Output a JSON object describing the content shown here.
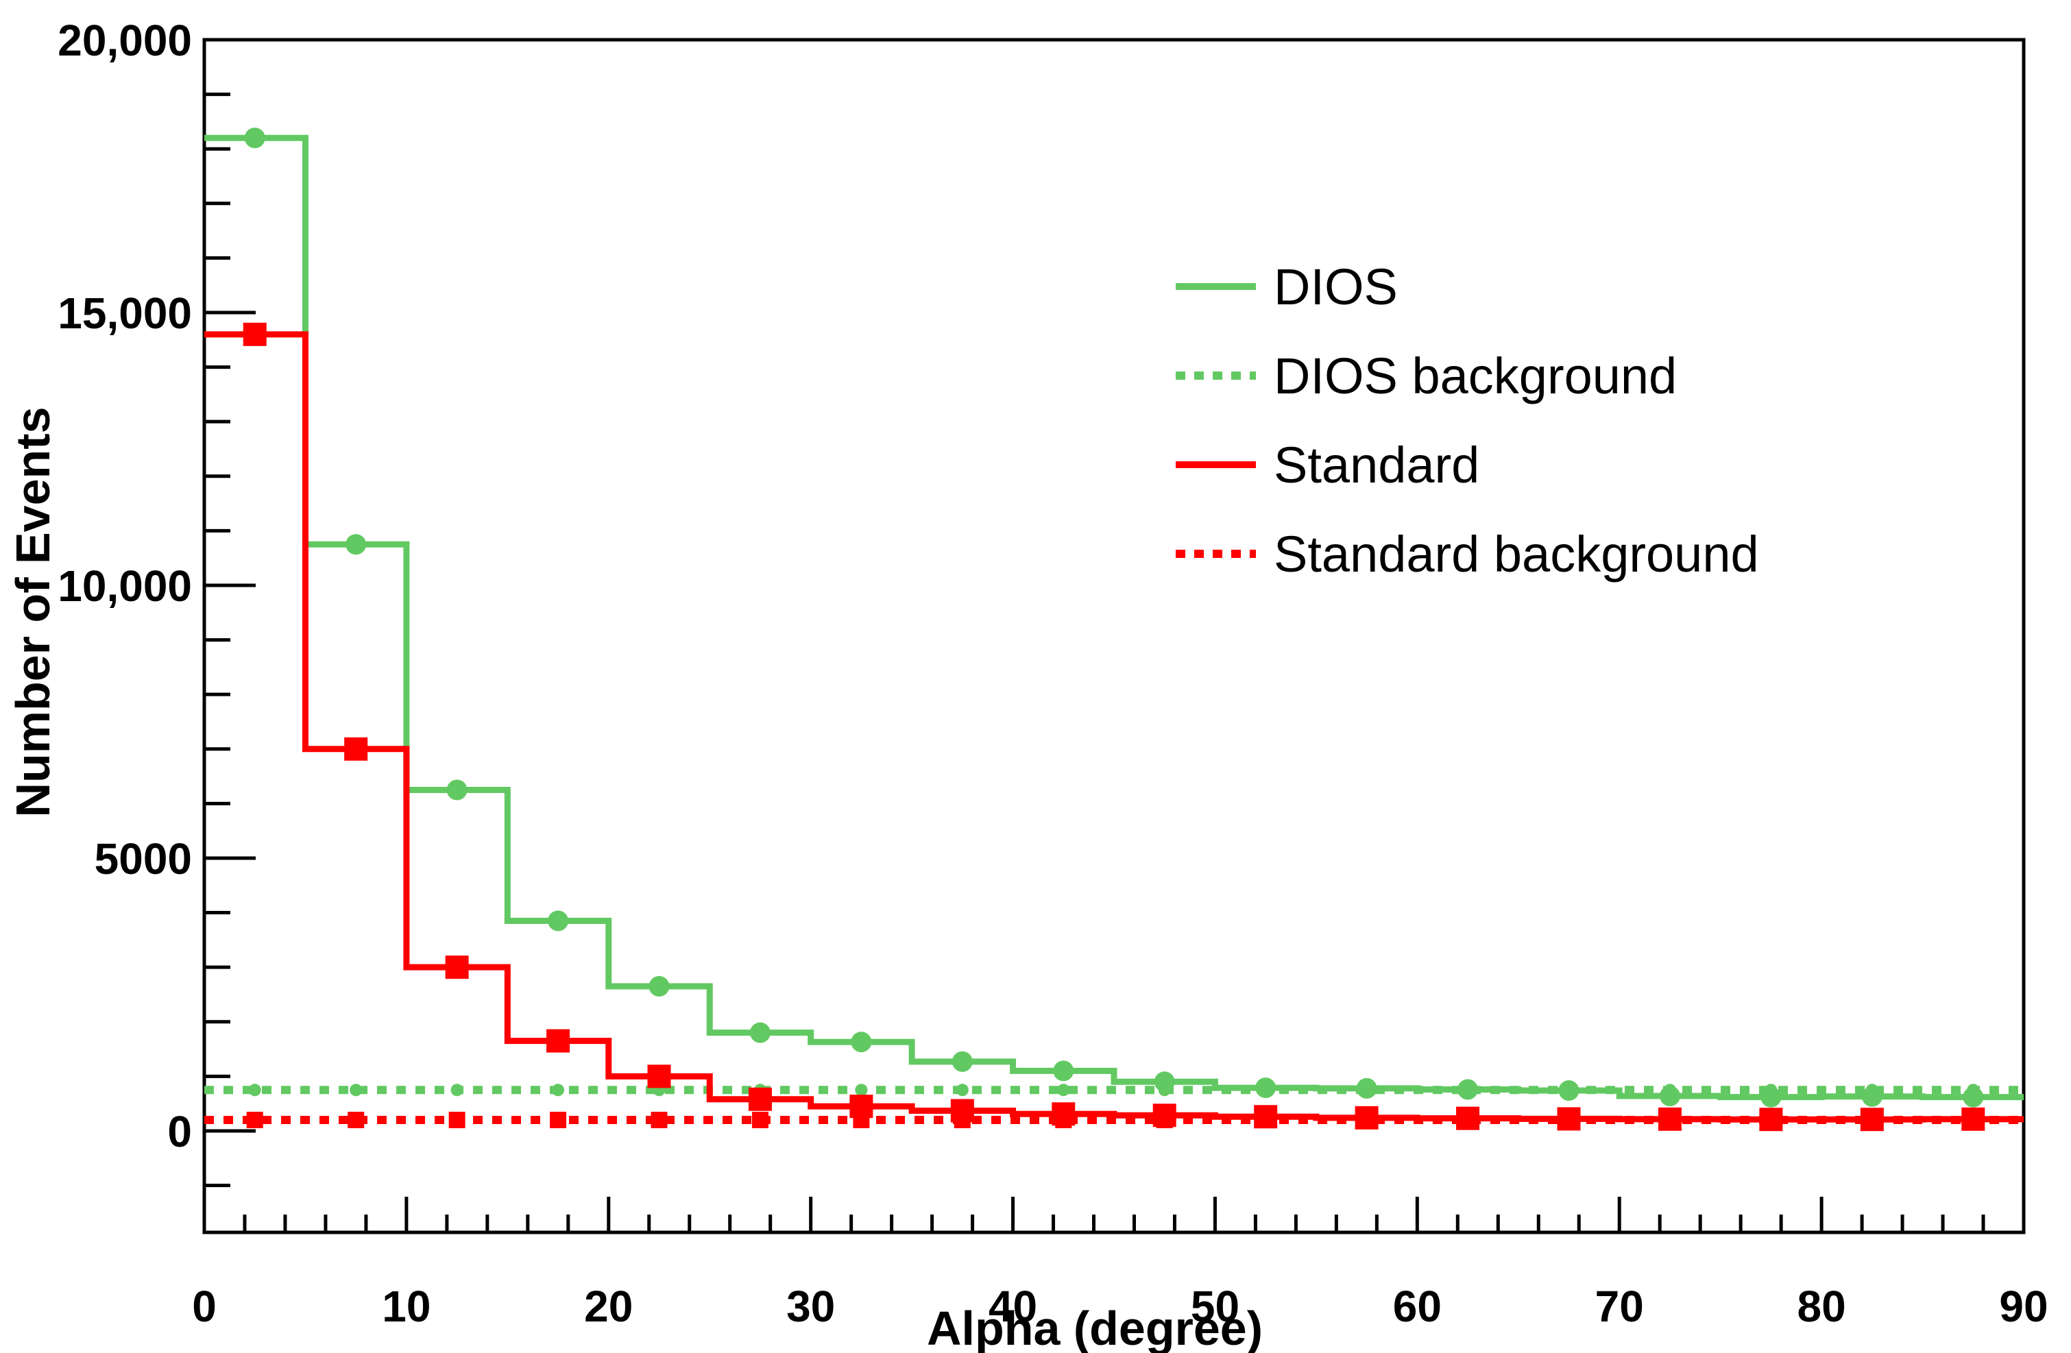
{
  "page": {
    "background_color": "#ffffff"
  },
  "chart_data": {
    "type": "step-histogram",
    "title": "",
    "xlabel": "Alpha (degree)",
    "ylabel": "Number of Events",
    "xlim": [
      0,
      90
    ],
    "ylim": [
      -1860,
      20000
    ],
    "grid": "off",
    "legend_position": "upper-right-inside",
    "legend_border": "none",
    "x_axis": {
      "tick_values": [
        0,
        10,
        20,
        30,
        40,
        50,
        60,
        70,
        80,
        90
      ],
      "tick_labels": [
        "0",
        "10",
        "20",
        "30",
        "40",
        "50",
        "60",
        "70",
        "80",
        "90"
      ],
      "minor_tick_step_degrees": 2
    },
    "y_axis": {
      "tick_values": [
        0,
        5000,
        10000,
        15000,
        20000
      ],
      "tick_labels": [
        "0",
        "5000",
        "10,000",
        "15,000",
        "20,000"
      ],
      "minor_tick_step": 1000
    },
    "bin_edges": [
      0,
      5,
      10,
      15,
      20,
      25,
      30,
      35,
      40,
      45,
      50,
      55,
      60,
      65,
      70,
      75,
      80,
      85,
      90
    ],
    "series": [
      {
        "name": "DIOS",
        "color": "#62C962",
        "line_style": "solid",
        "marker": "circle",
        "marker_size": 15,
        "values": [
          18200,
          10750,
          6250,
          3850,
          2650,
          1800,
          1630,
          1270,
          1100,
          900,
          790,
          780,
          760,
          740,
          640,
          620,
          630,
          620
        ]
      },
      {
        "name": "DIOS background",
        "color": "#62C962",
        "line_style": "dotted",
        "marker": "circle",
        "marker_size": 9,
        "values": [
          750,
          750,
          750,
          750,
          750,
          750,
          750,
          750,
          750,
          750,
          750,
          750,
          750,
          750,
          750,
          750,
          750,
          750
        ]
      },
      {
        "name": "Standard",
        "color": "#FF0000",
        "line_style": "solid",
        "marker": "square",
        "marker_size": 34,
        "values": [
          14600,
          7000,
          3000,
          1650,
          1000,
          580,
          450,
          370,
          310,
          285,
          260,
          240,
          230,
          220,
          215,
          210,
          210,
          215
        ]
      },
      {
        "name": "Standard background",
        "color": "#FF0000",
        "line_style": "dotted",
        "marker": "square",
        "marker_size": 24,
        "values": [
          200,
          200,
          200,
          200,
          200,
          200,
          200,
          200,
          200,
          200,
          200,
          200,
          200,
          200,
          200,
          200,
          200,
          200
        ]
      }
    ],
    "legend_entries": [
      "DIOS",
      "DIOS background",
      "Standard",
      "Standard background"
    ]
  }
}
